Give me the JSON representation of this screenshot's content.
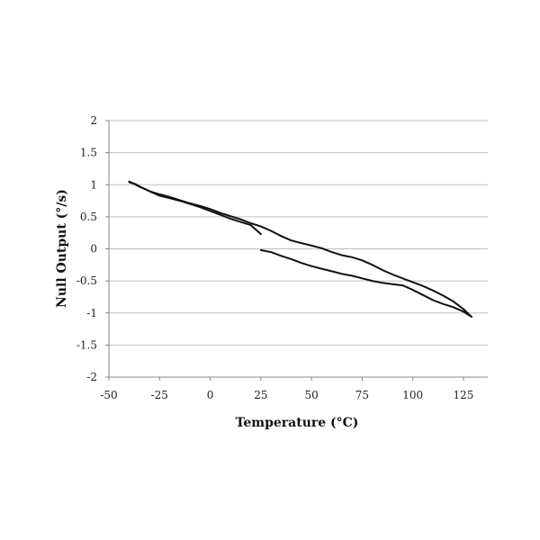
{
  "chart_data": {
    "type": "line",
    "xlabel": "Temperature (°C)",
    "ylabel": "Null Output (°/s)",
    "xlim": [
      -50,
      137
    ],
    "ylim": [
      -2,
      2
    ],
    "x_ticks": [
      -50,
      -25,
      0,
      25,
      50,
      75,
      100,
      125
    ],
    "y_ticks": [
      -2,
      -1.5,
      -1,
      -0.5,
      0,
      0.5,
      1,
      1.5,
      2
    ],
    "grid": "horizontal",
    "legend": "none",
    "line_color": "#111111",
    "series": [
      {
        "x": [
          -40,
          -38,
          -35,
          -32,
          -30,
          -28,
          -25,
          -20,
          -15,
          -10,
          -5,
          0,
          5,
          10,
          15,
          20,
          25
        ],
        "y": [
          1.05,
          1.02,
          0.97,
          0.93,
          0.9,
          0.87,
          0.83,
          0.79,
          0.75,
          0.7,
          0.65,
          0.59,
          0.53,
          0.47,
          0.42,
          0.37,
          0.23
        ]
      },
      {
        "x": [
          -40,
          -37,
          -34,
          -30,
          -25,
          -20,
          -15,
          -10,
          -5,
          0,
          5,
          10,
          15,
          20,
          25,
          30,
          35,
          40,
          45,
          50,
          55,
          60,
          65,
          70,
          75,
          80,
          85,
          90,
          95,
          100,
          105,
          110,
          115,
          120,
          125,
          127,
          129
        ],
        "y": [
          1.04,
          1.01,
          0.96,
          0.9,
          0.85,
          0.81,
          0.76,
          0.71,
          0.67,
          0.62,
          0.56,
          0.51,
          0.46,
          0.4,
          0.35,
          0.28,
          0.2,
          0.13,
          0.09,
          0.05,
          0.01,
          -0.05,
          -0.1,
          -0.13,
          -0.18,
          -0.25,
          -0.33,
          -0.4,
          -0.46,
          -0.52,
          -0.58,
          -0.65,
          -0.73,
          -0.82,
          -0.94,
          -1.0,
          -1.06
        ]
      },
      {
        "x": [
          25,
          30,
          35,
          40,
          45,
          50,
          55,
          60,
          65,
          70,
          75,
          80,
          85,
          90,
          95,
          100,
          105,
          110,
          115,
          120,
          125,
          128
        ],
        "y": [
          -0.02,
          -0.05,
          -0.11,
          -0.16,
          -0.22,
          -0.27,
          -0.31,
          -0.35,
          -0.39,
          -0.42,
          -0.46,
          -0.5,
          -0.53,
          -0.55,
          -0.57,
          -0.64,
          -0.72,
          -0.8,
          -0.86,
          -0.91,
          -0.98,
          -1.04
        ]
      }
    ]
  }
}
